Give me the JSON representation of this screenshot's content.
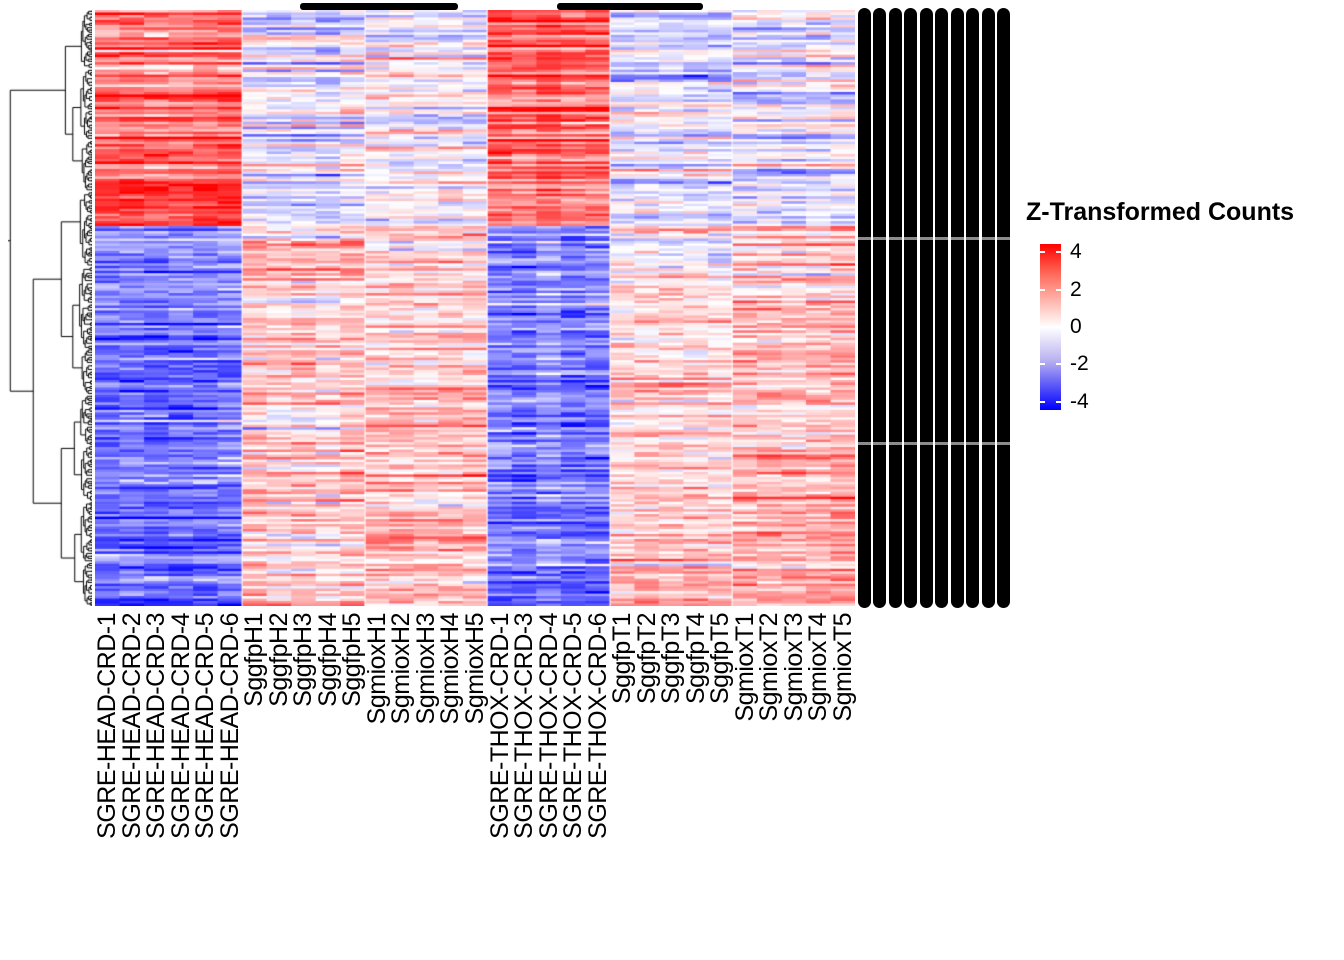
{
  "chart_data": {
    "type": "heatmap",
    "title": "",
    "legend": {
      "title": "Z-Transformed Counts",
      "tick_labels": [
        "4",
        "2",
        "0",
        "-2",
        "-4"
      ],
      "tick_values": [
        4,
        2,
        0,
        -2,
        -4
      ],
      "domain": [
        -4,
        4
      ],
      "colors": {
        "low": "#0000ff",
        "mid": "#ffffff",
        "high": "#ff0000"
      },
      "position": "right"
    },
    "columns": [
      "SGRE-HEAD-CRD-1",
      "SGRE-HEAD-CRD-2",
      "SGRE-HEAD-CRD-3",
      "SGRE-HEAD-CRD-4",
      "SGRE-HEAD-CRD-5",
      "SGRE-HEAD-CRD-6",
      "SggfpH1",
      "SggfpH2",
      "SggfpH3",
      "SggfpH4",
      "SggfpH5",
      "SgmioxH1",
      "SgmioxH2",
      "SgmioxH3",
      "SgmioxH4",
      "SgmioxH5",
      "SGRE-THOX-CRD-1",
      "SGRE-THOX-CRD-3",
      "SGRE-THOX-CRD-4",
      "SGRE-THOX-CRD-5",
      "SGRE-THOX-CRD-6",
      "SggfpT1",
      "SggfpT2",
      "SggfpT3",
      "SggfpT4",
      "SggfpT5",
      "SgmioxT1",
      "SgmioxT2",
      "SgmioxT3",
      "SgmioxT4",
      "SgmioxT5"
    ],
    "col_groups": [
      {
        "name": "SGRE-HEAD-CRD",
        "start": 0,
        "count": 6
      },
      {
        "name": "SggfpH",
        "start": 6,
        "count": 5
      },
      {
        "name": "SgmioxH",
        "start": 11,
        "count": 5
      },
      {
        "name": "SGRE-THOX-CRD",
        "start": 16,
        "count": 5
      },
      {
        "name": "SggfpT",
        "start": 21,
        "count": 5
      },
      {
        "name": "SgmioxT",
        "start": 26,
        "count": 5
      }
    ],
    "rows_rendered": 240,
    "row_blocks": [
      {
        "frac": 0.29,
        "group_means": [
          2.2,
          -0.35,
          -0.3,
          2.7,
          -0.45,
          -0.4
        ],
        "trend": [
          0.3,
          0,
          0,
          -0.4,
          0,
          0
        ],
        "row_sd": 0.85,
        "cell_sd": 0.45
      },
      {
        "frac": 0.07,
        "group_means": [
          3.3,
          -0.25,
          -0.2,
          2.1,
          -0.35,
          -0.3
        ],
        "trend": [
          0,
          0,
          0,
          0,
          0,
          0
        ],
        "row_sd": 0.5,
        "cell_sd": 0.45
      },
      {
        "frac": 0.09,
        "group_means": [
          -1.4,
          0.9,
          0.7,
          -1.5,
          0.3,
          0.7
        ],
        "trend": [
          -0.4,
          0,
          0,
          -0.3,
          0.2,
          0.3
        ],
        "row_sd": 0.7,
        "cell_sd": 0.5
      },
      {
        "frac": 0.55,
        "group_means": [
          -2.1,
          0.75,
          0.7,
          -1.95,
          0.65,
          0.8
        ],
        "trend": [
          -0.2,
          0.2,
          0.2,
          -0.1,
          0.4,
          0.5
        ],
        "row_sd": 0.6,
        "cell_sd": 0.5
      }
    ],
    "row_dendrogram": true,
    "row_labels_overplotted_illegible": true
  }
}
